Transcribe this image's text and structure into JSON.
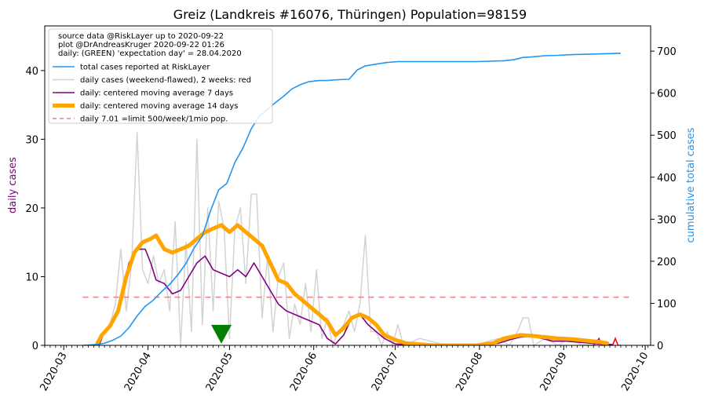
{
  "chart_data": {
    "type": "line",
    "title": "Greiz (Landkreis #16076, Thüringen) Population=98159",
    "ylabel_left": "daily cases",
    "ylabel_right": "cumulative total cases",
    "ylim_left": [
      0,
      46.5
    ],
    "ylim_right": [
      0,
      760
    ],
    "xlim": [
      "2020-02-23",
      "2020-10-03"
    ],
    "left_ticks": [
      0,
      10,
      20,
      30,
      40
    ],
    "right_ticks": [
      0,
      100,
      200,
      300,
      400,
      500,
      600,
      700
    ],
    "x_ticks": [
      "2020-03",
      "2020-04",
      "2020-05",
      "2020-06",
      "2020-07",
      "2020-08",
      "2020-09",
      "2020-10"
    ],
    "grid": false,
    "legend_position": "top-left",
    "legend_header": [
      "source data @RiskLayer up to 2020-09-22",
      "plot @DrAndreasKruger 2020-09-22 01:26",
      "daily: (GREEN) 'expectation day' = 28.04.2020"
    ],
    "colors": {
      "total": "#2196f3",
      "daily_raw": "#d3d3d3",
      "daily_recent": "#ff0000",
      "ma7": "#800080",
      "ma14": "#ffa500",
      "limit": "#e88080",
      "expectation": "#008000",
      "left_label": "#800080",
      "right_label": "#2196f3"
    },
    "series": [
      {
        "name": "total cases reported at RiskLayer",
        "axis": "right",
        "points": [
          [
            "2020-03-08",
            0
          ],
          [
            "2020-03-13",
            2
          ],
          [
            "2020-03-16",
            5
          ],
          [
            "2020-03-19",
            12
          ],
          [
            "2020-03-22",
            22
          ],
          [
            "2020-03-25",
            42
          ],
          [
            "2020-03-28",
            70
          ],
          [
            "2020-03-31",
            93
          ],
          [
            "2020-04-03",
            108
          ],
          [
            "2020-04-06",
            128
          ],
          [
            "2020-04-09",
            145
          ],
          [
            "2020-04-12",
            168
          ],
          [
            "2020-04-15",
            195
          ],
          [
            "2020-04-18",
            232
          ],
          [
            "2020-04-21",
            260
          ],
          [
            "2020-04-24",
            320
          ],
          [
            "2020-04-27",
            370
          ],
          [
            "2020-04-30",
            385
          ],
          [
            "2020-05-03",
            435
          ],
          [
            "2020-05-06",
            470
          ],
          [
            "2020-05-09",
            515
          ],
          [
            "2020-05-12",
            545
          ],
          [
            "2020-05-15",
            562
          ],
          [
            "2020-05-18",
            578
          ],
          [
            "2020-05-21",
            593
          ],
          [
            "2020-05-24",
            610
          ],
          [
            "2020-05-27",
            620
          ],
          [
            "2020-05-30",
            627
          ],
          [
            "2020-06-03",
            630
          ],
          [
            "2020-06-06",
            630
          ],
          [
            "2020-06-10",
            632
          ],
          [
            "2020-06-14",
            633
          ],
          [
            "2020-06-17",
            655
          ],
          [
            "2020-06-20",
            665
          ],
          [
            "2020-06-24",
            669
          ],
          [
            "2020-06-28",
            673
          ],
          [
            "2020-07-02",
            675
          ],
          [
            "2020-07-10",
            675
          ],
          [
            "2020-07-20",
            675
          ],
          [
            "2020-07-31",
            675
          ],
          [
            "2020-08-10",
            677
          ],
          [
            "2020-08-14",
            680
          ],
          [
            "2020-08-17",
            685
          ],
          [
            "2020-08-20",
            686
          ],
          [
            "2020-08-25",
            689
          ],
          [
            "2020-08-30",
            690
          ],
          [
            "2020-09-05",
            692
          ],
          [
            "2020-09-12",
            693
          ],
          [
            "2020-09-18",
            694
          ],
          [
            "2020-09-22",
            695
          ]
        ]
      },
      {
        "name": "daily cases (weekend-flawed), 2 weeks: red",
        "axis": "left",
        "points": [
          [
            "2020-03-14",
            0
          ],
          [
            "2020-03-16",
            2
          ],
          [
            "2020-03-18",
            3
          ],
          [
            "2020-03-20",
            6
          ],
          [
            "2020-03-22",
            14
          ],
          [
            "2020-03-24",
            5
          ],
          [
            "2020-03-26",
            12
          ],
          [
            "2020-03-28",
            31
          ],
          [
            "2020-03-30",
            11
          ],
          [
            "2020-04-01",
            9
          ],
          [
            "2020-04-03",
            13
          ],
          [
            "2020-04-05",
            9
          ],
          [
            "2020-04-07",
            11
          ],
          [
            "2020-04-09",
            5
          ],
          [
            "2020-04-11",
            18
          ],
          [
            "2020-04-13",
            0
          ],
          [
            "2020-04-15",
            15
          ],
          [
            "2020-04-17",
            2
          ],
          [
            "2020-04-19",
            30
          ],
          [
            "2020-04-21",
            3
          ],
          [
            "2020-04-23",
            20
          ],
          [
            "2020-04-25",
            5
          ],
          [
            "2020-04-27",
            21
          ],
          [
            "2020-04-29",
            17
          ],
          [
            "2020-05-01",
            1
          ],
          [
            "2020-05-03",
            17
          ],
          [
            "2020-05-05",
            20
          ],
          [
            "2020-05-07",
            9
          ],
          [
            "2020-05-09",
            22
          ],
          [
            "2020-05-11",
            22
          ],
          [
            "2020-05-13",
            4
          ],
          [
            "2020-05-15",
            13
          ],
          [
            "2020-05-17",
            2
          ],
          [
            "2020-05-19",
            10
          ],
          [
            "2020-05-21",
            12
          ],
          [
            "2020-05-23",
            1
          ],
          [
            "2020-05-25",
            6
          ],
          [
            "2020-05-27",
            3
          ],
          [
            "2020-05-29",
            9
          ],
          [
            "2020-05-31",
            2
          ],
          [
            "2020-06-02",
            11
          ],
          [
            "2020-06-04",
            1
          ],
          [
            "2020-06-06",
            4
          ],
          [
            "2020-06-08",
            0
          ],
          [
            "2020-06-10",
            2
          ],
          [
            "2020-06-12",
            3
          ],
          [
            "2020-06-14",
            5
          ],
          [
            "2020-06-16",
            2
          ],
          [
            "2020-06-18",
            6
          ],
          [
            "2020-06-20",
            16
          ],
          [
            "2020-06-22",
            2
          ],
          [
            "2020-06-24",
            2
          ],
          [
            "2020-06-26",
            0
          ],
          [
            "2020-06-28",
            2
          ],
          [
            "2020-06-30",
            0
          ],
          [
            "2020-07-02",
            3
          ],
          [
            "2020-07-04",
            0
          ],
          [
            "2020-07-10",
            1
          ],
          [
            "2020-07-20",
            0
          ],
          [
            "2020-07-30",
            0
          ],
          [
            "2020-08-08",
            1
          ],
          [
            "2020-08-12",
            0
          ],
          [
            "2020-08-15",
            2
          ],
          [
            "2020-08-17",
            4
          ],
          [
            "2020-08-19",
            4
          ],
          [
            "2020-08-21",
            0
          ],
          [
            "2020-08-25",
            1
          ],
          [
            "2020-08-30",
            0
          ],
          [
            "2020-09-03",
            1
          ],
          [
            "2020-09-08",
            0
          ]
        ],
        "recent_points": [
          [
            "2020-09-08",
            0
          ],
          [
            "2020-09-12",
            0
          ],
          [
            "2020-09-14",
            1
          ],
          [
            "2020-09-15",
            0
          ],
          [
            "2020-09-19",
            0
          ],
          [
            "2020-09-20",
            1
          ],
          [
            "2020-09-21",
            0
          ],
          [
            "2020-09-22",
            0
          ]
        ]
      },
      {
        "name": "daily: centered moving average 7 days",
        "axis": "left",
        "points": [
          [
            "2020-03-14",
            0
          ],
          [
            "2020-03-16",
            2
          ],
          [
            "2020-03-18",
            3
          ],
          [
            "2020-03-20",
            4
          ],
          [
            "2020-03-22",
            7
          ],
          [
            "2020-03-25",
            12
          ],
          [
            "2020-03-28",
            14
          ],
          [
            "2020-03-31",
            14
          ],
          [
            "2020-04-02",
            12
          ],
          [
            "2020-04-04",
            9.5
          ],
          [
            "2020-04-07",
            9
          ],
          [
            "2020-04-10",
            7.5
          ],
          [
            "2020-04-13",
            8
          ],
          [
            "2020-04-16",
            10
          ],
          [
            "2020-04-19",
            12
          ],
          [
            "2020-04-22",
            13
          ],
          [
            "2020-04-25",
            11
          ],
          [
            "2020-04-28",
            10.5
          ],
          [
            "2020-05-01",
            10
          ],
          [
            "2020-05-04",
            11
          ],
          [
            "2020-05-07",
            10
          ],
          [
            "2020-05-10",
            12
          ],
          [
            "2020-05-13",
            10
          ],
          [
            "2020-05-16",
            8
          ],
          [
            "2020-05-19",
            6
          ],
          [
            "2020-05-22",
            5
          ],
          [
            "2020-05-25",
            4.5
          ],
          [
            "2020-05-28",
            4
          ],
          [
            "2020-05-31",
            3.5
          ],
          [
            "2020-06-03",
            3
          ],
          [
            "2020-06-06",
            1
          ],
          [
            "2020-06-09",
            0.2
          ],
          [
            "2020-06-12",
            1.5
          ],
          [
            "2020-06-15",
            4
          ],
          [
            "2020-06-18",
            4.5
          ],
          [
            "2020-06-21",
            3
          ],
          [
            "2020-06-24",
            2
          ],
          [
            "2020-06-27",
            1
          ],
          [
            "2020-07-01",
            0.2
          ],
          [
            "2020-07-10",
            0
          ],
          [
            "2020-07-31",
            0
          ],
          [
            "2020-08-08",
            0.3
          ],
          [
            "2020-08-12",
            0.8
          ],
          [
            "2020-08-16",
            1.2
          ],
          [
            "2020-08-20",
            1.3
          ],
          [
            "2020-08-24",
            1
          ],
          [
            "2020-08-28",
            0.6
          ],
          [
            "2020-09-02",
            0.6
          ],
          [
            "2020-09-08",
            0.4
          ],
          [
            "2020-09-14",
            0.2
          ],
          [
            "2020-09-19",
            0.1
          ]
        ]
      },
      {
        "name": "daily: centered moving average 14 days",
        "axis": "left",
        "points": [
          [
            "2020-03-13",
            0
          ],
          [
            "2020-03-15",
            1.5
          ],
          [
            "2020-03-18",
            2.8
          ],
          [
            "2020-03-21",
            5
          ],
          [
            "2020-03-24",
            10
          ],
          [
            "2020-03-27",
            13.5
          ],
          [
            "2020-03-30",
            15
          ],
          [
            "2020-04-02",
            15.5
          ],
          [
            "2020-04-04",
            16
          ],
          [
            "2020-04-07",
            14
          ],
          [
            "2020-04-10",
            13.5
          ],
          [
            "2020-04-13",
            14
          ],
          [
            "2020-04-16",
            14.5
          ],
          [
            "2020-04-19",
            15.5
          ],
          [
            "2020-04-22",
            16.5
          ],
          [
            "2020-04-25",
            17
          ],
          [
            "2020-04-28",
            17.5
          ],
          [
            "2020-05-01",
            16.5
          ],
          [
            "2020-05-04",
            17.5
          ],
          [
            "2020-05-07",
            16.5
          ],
          [
            "2020-05-10",
            15.5
          ],
          [
            "2020-05-13",
            14.5
          ],
          [
            "2020-05-16",
            12
          ],
          [
            "2020-05-19",
            9.5
          ],
          [
            "2020-05-22",
            9
          ],
          [
            "2020-05-25",
            7.5
          ],
          [
            "2020-05-28",
            6.5
          ],
          [
            "2020-05-31",
            5.5
          ],
          [
            "2020-06-03",
            4.5
          ],
          [
            "2020-06-06",
            3.5
          ],
          [
            "2020-06-09",
            1.5
          ],
          [
            "2020-06-12",
            2.5
          ],
          [
            "2020-06-15",
            4
          ],
          [
            "2020-06-18",
            4.5
          ],
          [
            "2020-06-21",
            4
          ],
          [
            "2020-06-24",
            3
          ],
          [
            "2020-06-27",
            1.5
          ],
          [
            "2020-07-01",
            0.8
          ],
          [
            "2020-07-05",
            0.3
          ],
          [
            "2020-07-15",
            0
          ],
          [
            "2020-07-31",
            0
          ],
          [
            "2020-08-06",
            0.3
          ],
          [
            "2020-08-10",
            1
          ],
          [
            "2020-08-16",
            1.5
          ],
          [
            "2020-08-20",
            1.4
          ],
          [
            "2020-08-25",
            1.2
          ],
          [
            "2020-08-30",
            1
          ],
          [
            "2020-09-04",
            0.9
          ],
          [
            "2020-09-09",
            0.7
          ],
          [
            "2020-09-14",
            0.5
          ],
          [
            "2020-09-17",
            0.3
          ]
        ]
      },
      {
        "name": "daily 7.01 =limit 500/week/1mio pop.",
        "axis": "left",
        "points": [
          [
            "2020-03-08",
            7.01
          ],
          [
            "2020-09-25",
            7.01
          ]
        ]
      }
    ],
    "markers": [
      {
        "date": "2020-04-28",
        "value": 1.5,
        "shape": "triangle-down",
        "color": "#008000"
      }
    ]
  }
}
